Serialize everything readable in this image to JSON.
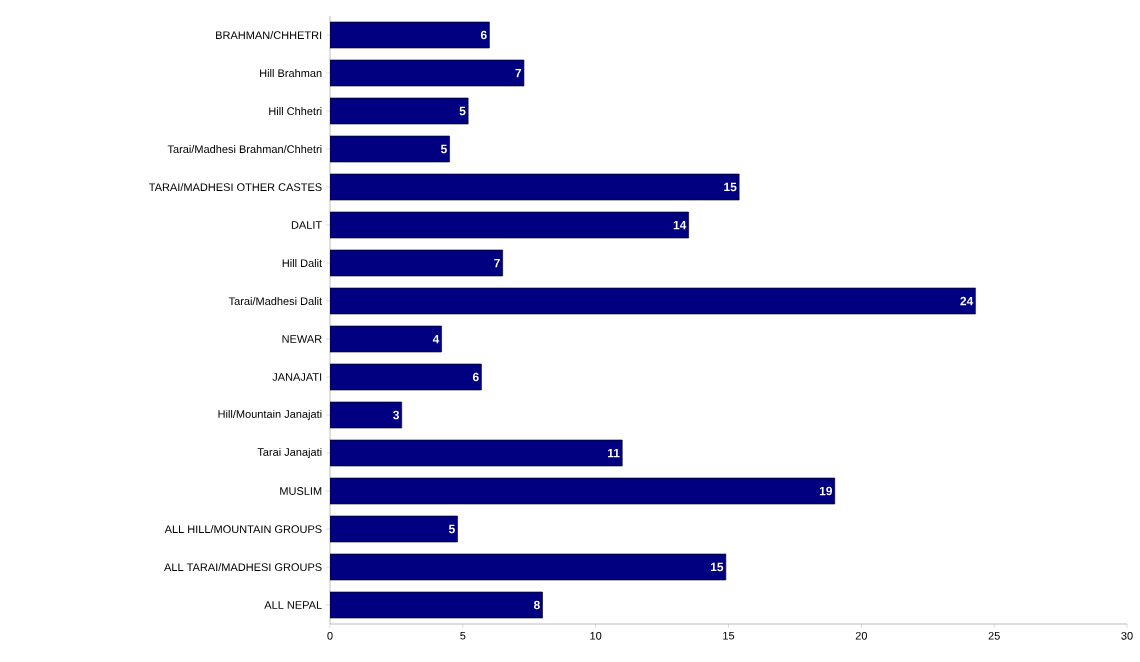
{
  "chart_data": {
    "type": "bar",
    "orientation": "horizontal",
    "categories": [
      "BRAHMAN/CHHETRI",
      "Hill Brahman",
      "Hill Chhetri",
      "Tarai/Madhesi Brahman/Chhetri",
      "TARAI/MADHESI OTHER CASTES",
      "DALIT",
      "Hill Dalit",
      "Tarai/Madhesi Dalit",
      "NEWAR",
      "JANAJATI",
      "Hill/Mountain Janajati",
      "Tarai Janajati",
      "MUSLIM",
      "ALL HILL/MOUNTAIN GROUPS",
      "ALL TARAI/MADHESI GROUPS",
      "ALL NEPAL"
    ],
    "values": [
      6.0,
      7.3,
      5.2,
      4.5,
      15.4,
      13.5,
      6.5,
      24.3,
      4.2,
      5.7,
      2.7,
      11.0,
      19.0,
      4.8,
      14.9,
      8.0
    ],
    "value_labels": [
      "6",
      "7",
      "5",
      "5",
      "15",
      "14",
      "7",
      "24",
      "4",
      "6",
      "3",
      "11",
      "19",
      "5",
      "15",
      "8"
    ],
    "color": "#000080",
    "xlim": [
      0,
      30
    ],
    "xticks": [
      0,
      5,
      10,
      15,
      20,
      25,
      30
    ],
    "grid": false
  }
}
